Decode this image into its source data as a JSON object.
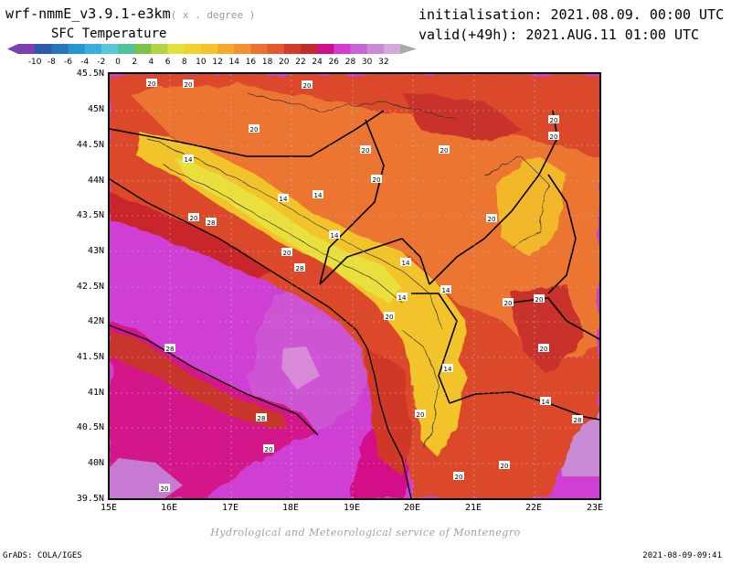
{
  "header": {
    "model": "wrf-nmmE_v3.9.1-e3km",
    "model_suffix": "( x . degree )",
    "variable": "SFC Temperature",
    "initialisation": "initialisation: 2021.08.09. 00:00 UTC",
    "valid": "valid(+49h): 2021.AUG.11 01:00 UTC"
  },
  "colorbar": {
    "ticks": [
      "-10",
      "-8",
      "-6",
      "-4",
      "-2",
      "0",
      "2",
      "4",
      "6",
      "8",
      "10",
      "12",
      "14",
      "16",
      "18",
      "20",
      "22",
      "24",
      "26",
      "28",
      "30",
      "32"
    ],
    "colors": [
      "#7b3fb0",
      "#2c5aa8",
      "#2477b8",
      "#2596cf",
      "#38afe0",
      "#58c8d8",
      "#4fc49b",
      "#7ac24c",
      "#b6d245",
      "#e3e03a",
      "#f0d22a",
      "#f5c22a",
      "#f6a82c",
      "#f39030",
      "#ed7232",
      "#e45a2e",
      "#d13b2a",
      "#c12c2a",
      "#d20f8a",
      "#d73ad0",
      "#c763d4",
      "#c88cd6",
      "#d3a9de"
    ]
  },
  "map": {
    "lat_labels": [
      "45.5N",
      "45N",
      "44.5N",
      "44N",
      "43.5N",
      "43N",
      "42.5N",
      "42N",
      "41.5N",
      "41N",
      "40.5N",
      "40N",
      "39.5N"
    ],
    "lon_labels": [
      "15E",
      "16E",
      "17E",
      "18E",
      "19E",
      "20E",
      "21E",
      "22E",
      "23E"
    ],
    "contour_labels": [
      "20",
      "20",
      "20",
      "20",
      "20",
      "20",
      "14",
      "14",
      "14",
      "14",
      "28",
      "20",
      "14",
      "14",
      "14",
      "20",
      "20",
      "20",
      "20",
      "14",
      "28",
      "20",
      "28",
      "14",
      "20",
      "20",
      "28",
      "20",
      "28",
      "20",
      "20",
      "20",
      "20",
      "20",
      "20"
    ]
  },
  "footer": {
    "credit": "Hydrological and Meteorological service of Montenegro",
    "grads": "GrADS: COLA/IGES",
    "timestamp": "2021-08-09-09:41"
  }
}
